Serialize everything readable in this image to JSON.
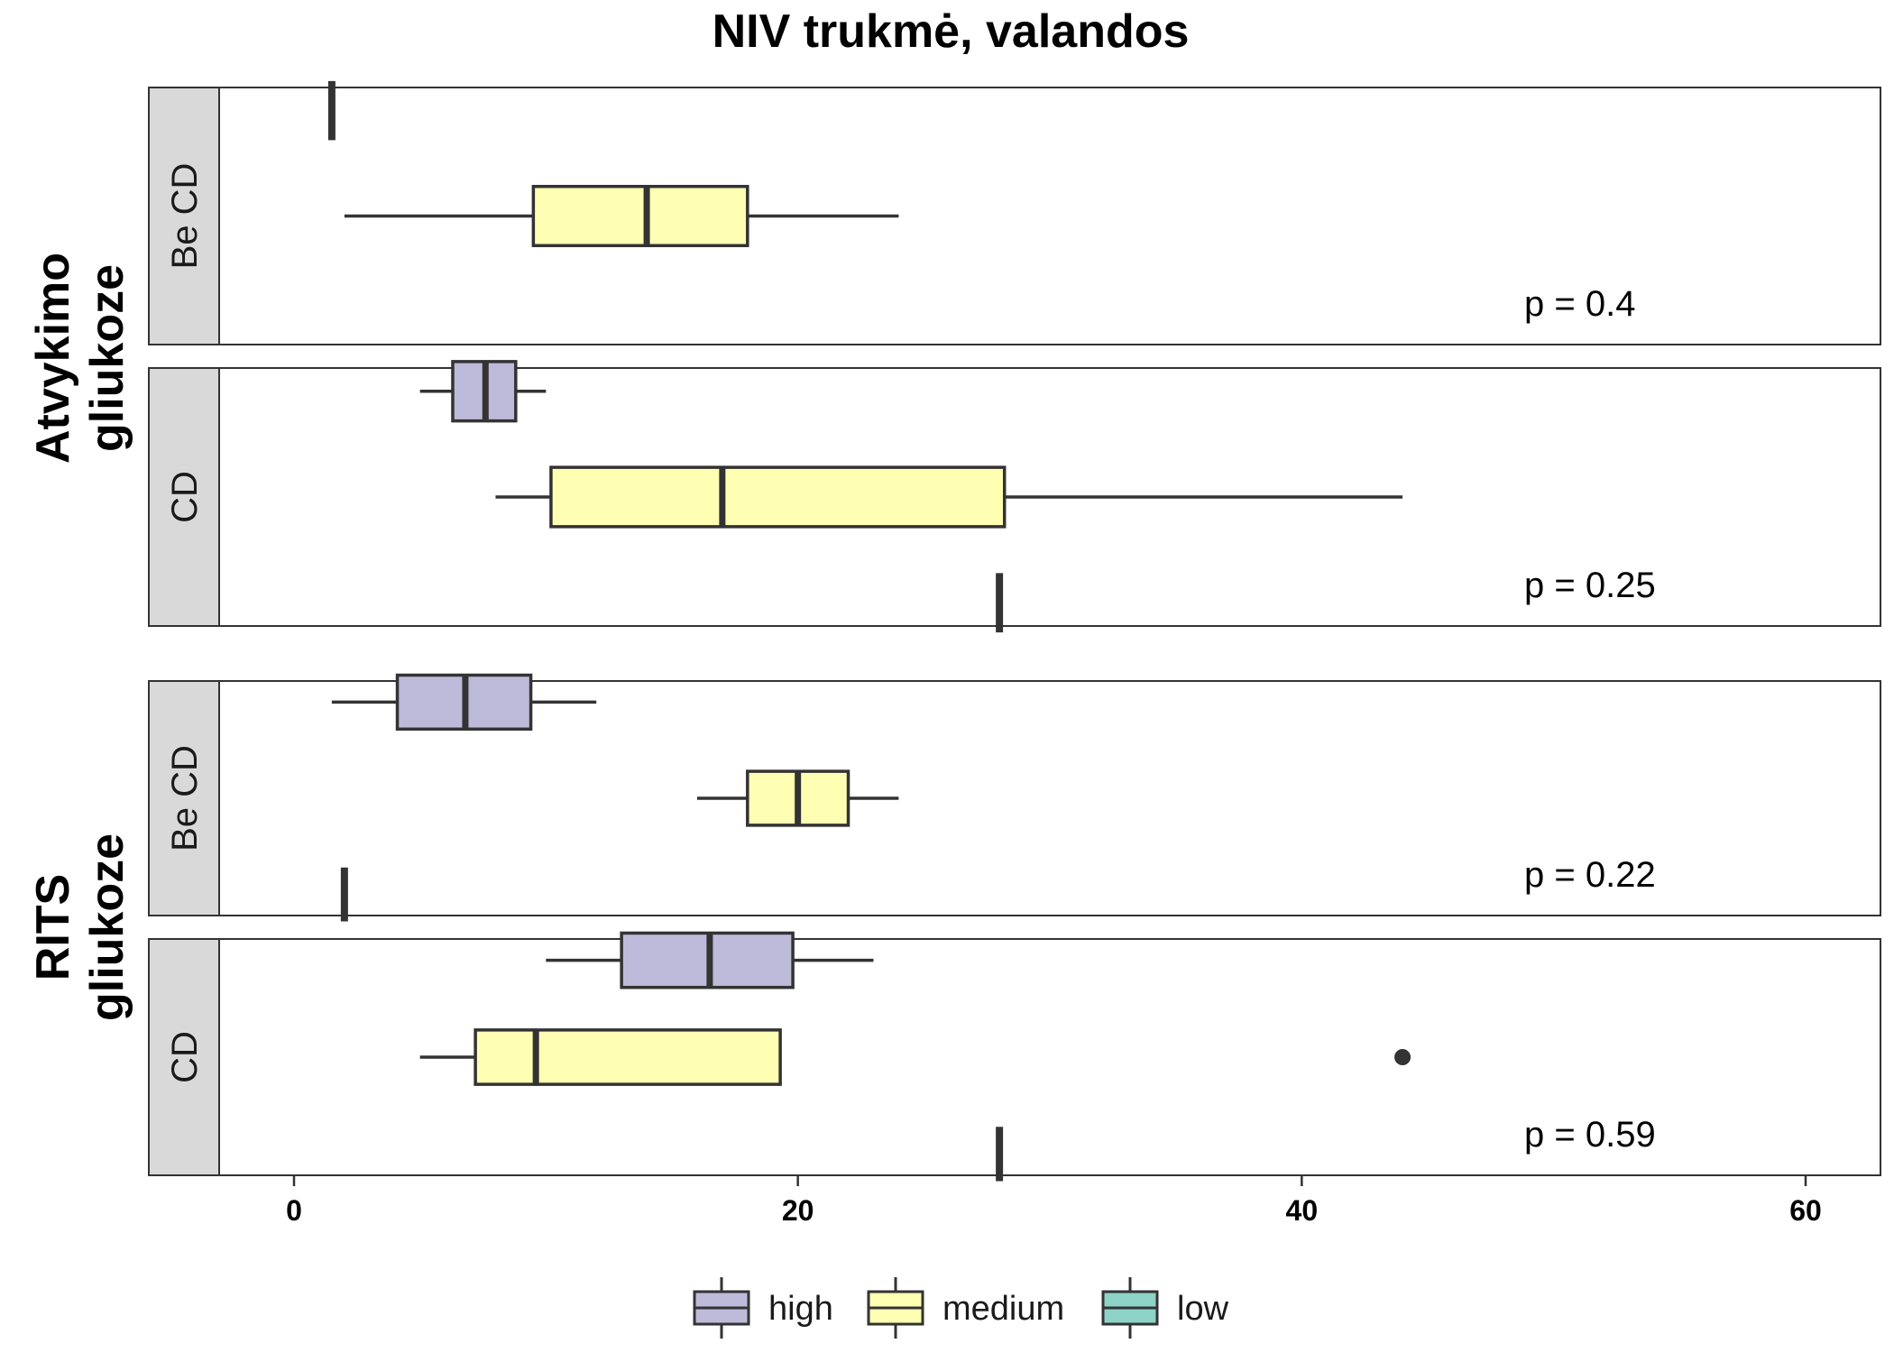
{
  "chart_data": {
    "type": "boxplot",
    "orientation": "horizontal",
    "title": "NIV trukmė, valandos",
    "x_ticks": [
      0,
      20,
      40,
      60
    ],
    "xlim": [
      -6,
      62
    ],
    "levels": [
      "high",
      "medium",
      "low"
    ],
    "colors": {
      "high": "#bebada",
      "medium": "#ffffb3",
      "low": "#8dd3c7"
    },
    "legend": {
      "position": "bottom",
      "entries": [
        "high",
        "medium",
        "low"
      ]
    },
    "groups": [
      {
        "label_lines": [
          "Atvykimo",
          "gliukoze"
        ],
        "panels": [
          {
            "strip": "Be CD",
            "p_text": "p = 0.4",
            "boxes": [
              {
                "level": "high",
                "single": true,
                "median": 1.5
              },
              {
                "level": "medium",
                "min": 2,
                "q1": 9.5,
                "median": 14,
                "q3": 18,
                "max": 24
              }
            ],
            "outliers": []
          },
          {
            "strip": "CD",
            "p_text": "p = 0.25",
            "boxes": [
              {
                "level": "high",
                "min": 5,
                "q1": 6.3,
                "median": 7.6,
                "q3": 8.8,
                "max": 10
              },
              {
                "level": "medium",
                "min": 8,
                "q1": 10.2,
                "median": 17,
                "q3": 28.2,
                "max": 44
              },
              {
                "level": "low",
                "single": true,
                "median": 28
              }
            ],
            "outliers": []
          }
        ]
      },
      {
        "label_lines": [
          "RITS",
          "gliukoze"
        ],
        "panels": [
          {
            "strip": "Be CD",
            "p_text": "p = 0.22",
            "boxes": [
              {
                "level": "high",
                "min": 1.5,
                "q1": 4.1,
                "median": 6.8,
                "q3": 9.4,
                "max": 12
              },
              {
                "level": "medium",
                "min": 16,
                "q1": 18,
                "median": 20,
                "q3": 22,
                "max": 24
              },
              {
                "level": "low",
                "single": true,
                "median": 2
              }
            ],
            "outliers": []
          },
          {
            "strip": "CD",
            "p_text": "p = 0.59",
            "boxes": [
              {
                "level": "high",
                "min": 10,
                "q1": 13,
                "median": 16.5,
                "q3": 19.8,
                "max": 23
              },
              {
                "level": "medium",
                "min": 5,
                "q1": 7.2,
                "median": 9.6,
                "q3": 19.3,
                "max": null
              },
              {
                "level": "low",
                "single": true,
                "median": 28
              }
            ],
            "outliers": [
              {
                "level": "medium",
                "value": 44
              }
            ]
          }
        ]
      }
    ]
  }
}
